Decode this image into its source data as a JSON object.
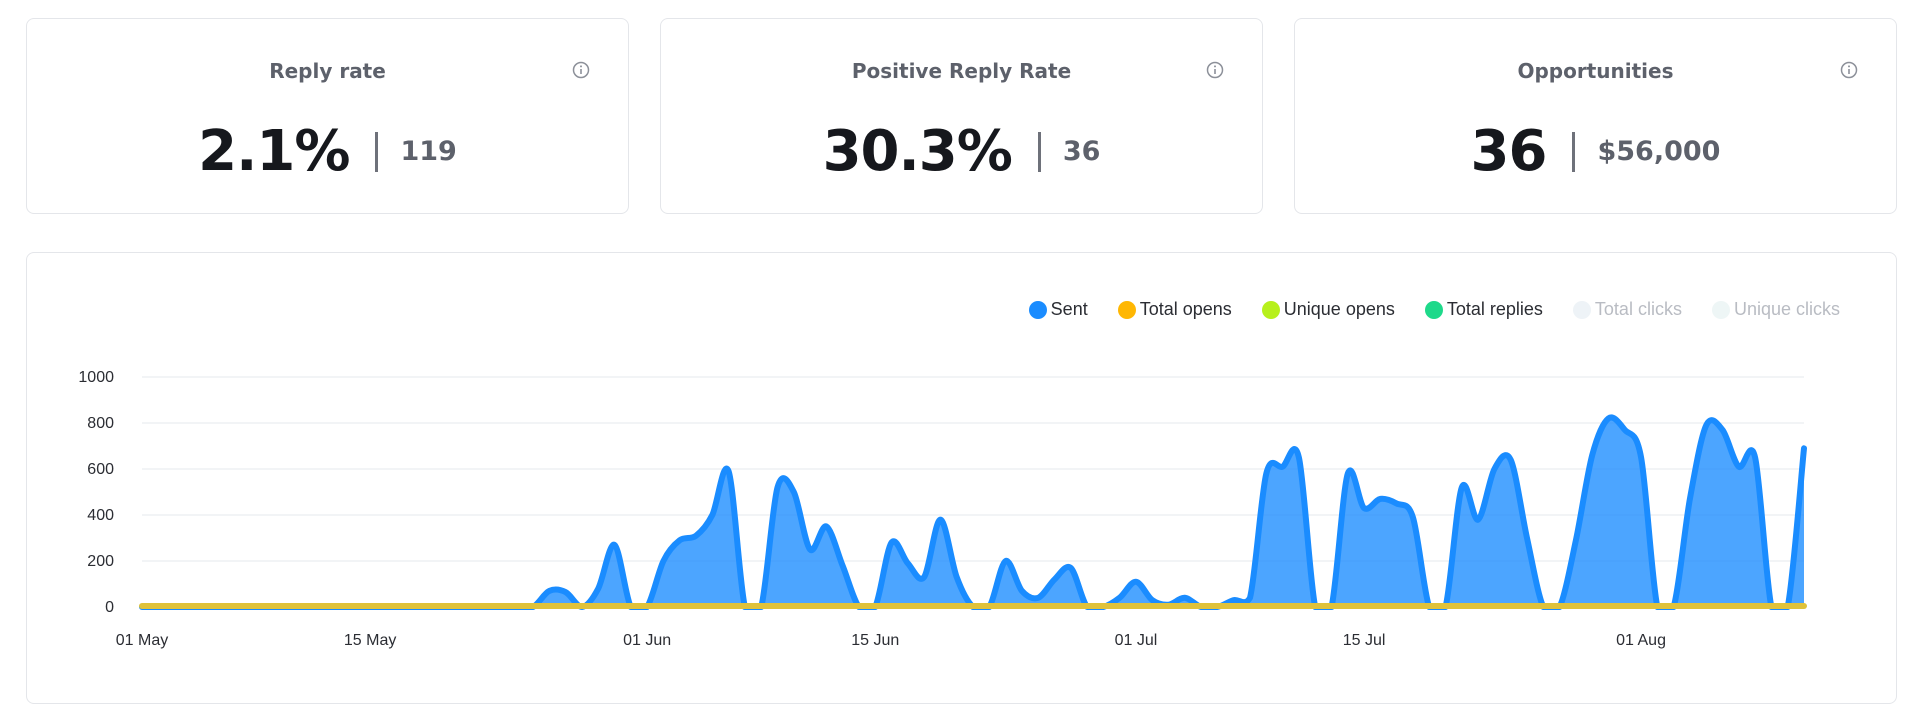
{
  "stats": [
    {
      "title": "Reply rate",
      "value": "2.1%",
      "sub": "119"
    },
    {
      "title": "Positive Reply Rate",
      "value": "30.3%",
      "sub": "36"
    },
    {
      "title": "Opportunities",
      "value": "36",
      "sub": "$56,000"
    }
  ],
  "legend": [
    {
      "label": "Sent",
      "color": "#1a8cff",
      "active": true
    },
    {
      "label": "Total opens",
      "color": "#ffb703",
      "active": true
    },
    {
      "label": "Unique opens",
      "color": "#b7f01c",
      "active": true
    },
    {
      "label": "Total replies",
      "color": "#1ed98a",
      "active": true
    },
    {
      "label": "Total clicks",
      "color": "#eef3f7",
      "active": false
    },
    {
      "label": "Unique clicks",
      "color": "#eef6f6",
      "active": false
    }
  ],
  "chart_data": {
    "type": "area",
    "x_start": "01 May",
    "x_end": "09 Aug",
    "xticks": [
      {
        "label": "01 May",
        "day": 0
      },
      {
        "label": "15 May",
        "day": 14
      },
      {
        "label": "01 Jun",
        "day": 31
      },
      {
        "label": "15 Jun",
        "day": 45
      },
      {
        "label": "01 Jul",
        "day": 61
      },
      {
        "label": "15 Jul",
        "day": 75
      },
      {
        "label": "01 Aug",
        "day": 92
      }
    ],
    "yticks": [
      0,
      200,
      400,
      600,
      800,
      1000
    ],
    "ylim": [
      0,
      1000
    ],
    "series": [
      {
        "name": "Sent",
        "color": "#1a8cff",
        "values": [
          0,
          0,
          0,
          0,
          0,
          0,
          0,
          0,
          0,
          0,
          0,
          0,
          0,
          0,
          0,
          0,
          0,
          0,
          0,
          0,
          0,
          0,
          0,
          0,
          0,
          70,
          65,
          0,
          80,
          270,
          0,
          0,
          200,
          290,
          310,
          400,
          590,
          0,
          0,
          520,
          500,
          250,
          350,
          180,
          0,
          0,
          280,
          190,
          130,
          380,
          130,
          0,
          0,
          200,
          70,
          40,
          120,
          170,
          0,
          0,
          40,
          110,
          30,
          10,
          40,
          0,
          0,
          30,
          40,
          580,
          610,
          650,
          0,
          0,
          580,
          430,
          470,
          450,
          390,
          0,
          0,
          520,
          380,
          600,
          640,
          300,
          0,
          0,
          290,
          660,
          820,
          770,
          650,
          0,
          0,
          470,
          790,
          770,
          610,
          650,
          0,
          0,
          690
        ]
      },
      {
        "name": "Total opens",
        "color": "#e0c23a",
        "values": [
          0,
          0,
          0,
          0,
          0,
          0,
          0,
          0,
          0,
          0,
          0,
          0,
          0,
          0,
          0,
          0,
          0,
          0,
          0,
          0,
          0,
          0,
          0,
          0,
          0,
          0,
          0,
          0,
          0,
          0,
          0,
          0,
          0,
          0,
          0,
          0,
          0,
          0,
          0,
          0,
          0,
          0,
          0,
          0,
          0,
          0,
          0,
          0,
          0,
          0,
          0,
          0,
          0,
          0,
          0,
          0,
          0,
          0,
          0,
          0,
          0,
          0,
          0,
          0,
          0,
          0,
          0,
          0,
          0,
          0,
          0,
          0,
          0,
          0,
          0,
          0,
          0,
          0,
          0,
          0,
          0,
          0,
          0,
          0,
          0,
          0,
          0,
          0,
          0,
          0,
          0,
          0,
          0,
          0,
          0,
          0,
          0,
          0,
          0,
          0,
          0,
          0,
          0
        ]
      }
    ]
  }
}
